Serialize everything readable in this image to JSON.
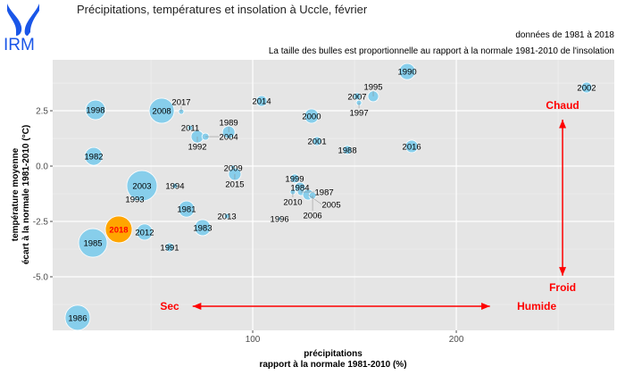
{
  "logo": {
    "text": "IRM",
    "color": "#1a56e8"
  },
  "chart_data": {
    "type": "scatter",
    "title": "Précipitations, températures et insolation à Uccle, février",
    "subtitle1": "données de 1981 à 2018",
    "subtitle2": "La taille des bulles est proportionnelle au rapport à la normale 1981-2010 de l'insolation",
    "xlabel1": "précipitations",
    "xlabel2": "rapport à la normale 1981-2010 (%)",
    "ylabel1": "température moyenne",
    "ylabel2": "écart à la normale 1981-2010 (°C)",
    "xlim": [
      1.75,
      277.6
    ],
    "ylim": [
      -7.42,
      4.8
    ],
    "xticks": [
      {
        "v": 100,
        "label": "100"
      },
      {
        "v": 200,
        "label": "200"
      }
    ],
    "yticks": [
      {
        "v": 2.5,
        "label": "2.5"
      },
      {
        "v": 0,
        "label": "0.0"
      },
      {
        "v": -2.5,
        "label": "-2.5"
      },
      {
        "v": -5,
        "label": "-5.0"
      }
    ],
    "grid": true,
    "bubble_color": "#87ceeb",
    "highlight_color": "#ffa500",
    "highlight_label_color": "#ff0000",
    "points": [
      {
        "year": "1990",
        "x": 175.9,
        "y": 4.27,
        "sun": 81
      },
      {
        "year": "2002",
        "x": 264.0,
        "y": 3.55,
        "sun": 36
      },
      {
        "year": "2007",
        "x": 151.3,
        "y": 3.15,
        "sun": 16
      },
      {
        "year": "1995",
        "x": 159.2,
        "y": 3.15,
        "sun": 36
      },
      {
        "year": "1997",
        "x": 152.2,
        "y": 2.86,
        "sun": 9
      },
      {
        "year": "1998",
        "x": 22.8,
        "y": 2.54,
        "sun": 121
      },
      {
        "year": "2008",
        "x": 55.3,
        "y": 2.5,
        "sun": 196
      },
      {
        "year": "2017",
        "x": 64.9,
        "y": 2.46,
        "sun": 9
      },
      {
        "year": "2014",
        "x": 104.4,
        "y": 2.94,
        "sun": 36
      },
      {
        "year": "2000",
        "x": 128.9,
        "y": 2.26,
        "sun": 64
      },
      {
        "year": "2011",
        "x": 69.3,
        "y": 1.73,
        "sun": 9
      },
      {
        "year": "1992",
        "x": 72.8,
        "y": 1.33,
        "sun": 49
      },
      {
        "year": "2004",
        "x": 76.8,
        "y": 1.33,
        "sun": 16
      },
      {
        "year": "1989",
        "x": 88.2,
        "y": 1.53,
        "sun": 49
      },
      {
        "year": "1982",
        "x": 21.9,
        "y": 0.44,
        "sun": 100
      },
      {
        "year": "2001",
        "x": 131.6,
        "y": 1.13,
        "sun": 25
      },
      {
        "year": "1988",
        "x": 146.5,
        "y": 0.73,
        "sun": 25
      },
      {
        "year": "2016",
        "x": 178.1,
        "y": 0.89,
        "sun": 49
      },
      {
        "year": "2009",
        "x": 90.4,
        "y": -0.08,
        "sun": 9
      },
      {
        "year": "2015",
        "x": 91.2,
        "y": -0.36,
        "sun": 49
      },
      {
        "year": "2003",
        "x": 45.6,
        "y": -0.89,
        "sun": 289
      },
      {
        "year": "1994",
        "x": 61.8,
        "y": -0.89,
        "sun": 9
      },
      {
        "year": "1993",
        "x": 42.1,
        "y": -1.49,
        "sun": 4
      },
      {
        "year": "1999",
        "x": 120.6,
        "y": -0.56,
        "sun": 25
      },
      {
        "year": "1984",
        "x": 123.2,
        "y": -0.97,
        "sun": 36
      },
      {
        "year": "2010",
        "x": 119.7,
        "y": -1.17,
        "sun": 9
      },
      {
        "year": "1987",
        "x": 123.7,
        "y": -1.17,
        "sun": 16
      },
      {
        "year": "2005",
        "x": 127.2,
        "y": -1.29,
        "sun": 36
      },
      {
        "year": "2006",
        "x": 129.4,
        "y": -1.33,
        "sun": 16
      },
      {
        "year": "1981",
        "x": 67.5,
        "y": -1.94,
        "sun": 81
      },
      {
        "year": "2013",
        "x": 87.3,
        "y": -2.26,
        "sun": 9
      },
      {
        "year": "1996",
        "x": 113.2,
        "y": -2.38,
        "sun": 4
      },
      {
        "year": "1983",
        "x": 75.4,
        "y": -2.78,
        "sun": 81
      },
      {
        "year": "2012",
        "x": 46.9,
        "y": -2.98,
        "sun": 81
      },
      {
        "year": "1985",
        "x": 21.5,
        "y": -3.47,
        "sun": 256
      },
      {
        "year": "1991",
        "x": 59.2,
        "y": -3.67,
        "sun": 25
      },
      {
        "year": "1986",
        "x": 14.0,
        "y": -6.85,
        "sun": 196
      },
      {
        "year": "2018",
        "x": 34.2,
        "y": -2.86,
        "sun": 225,
        "highlight": true
      }
    ],
    "annotations": {
      "hot": {
        "text": "Chaud",
        "x": 252.2,
        "y": 2.74
      },
      "cold": {
        "text": "Froid",
        "x": 252.2,
        "y": -5.48
      },
      "dry": {
        "text": "Sec",
        "x": 59.2,
        "y": -6.33
      },
      "wet": {
        "text": "Humide",
        "x": 239.5,
        "y": -6.33
      },
      "v_arrow": {
        "x": 252.2,
        "y_from": 2.1,
        "y_to": -4.95
      },
      "h_arrow": {
        "y": -6.33,
        "x_from": 70.5,
        "x_to": 216.5
      }
    }
  }
}
